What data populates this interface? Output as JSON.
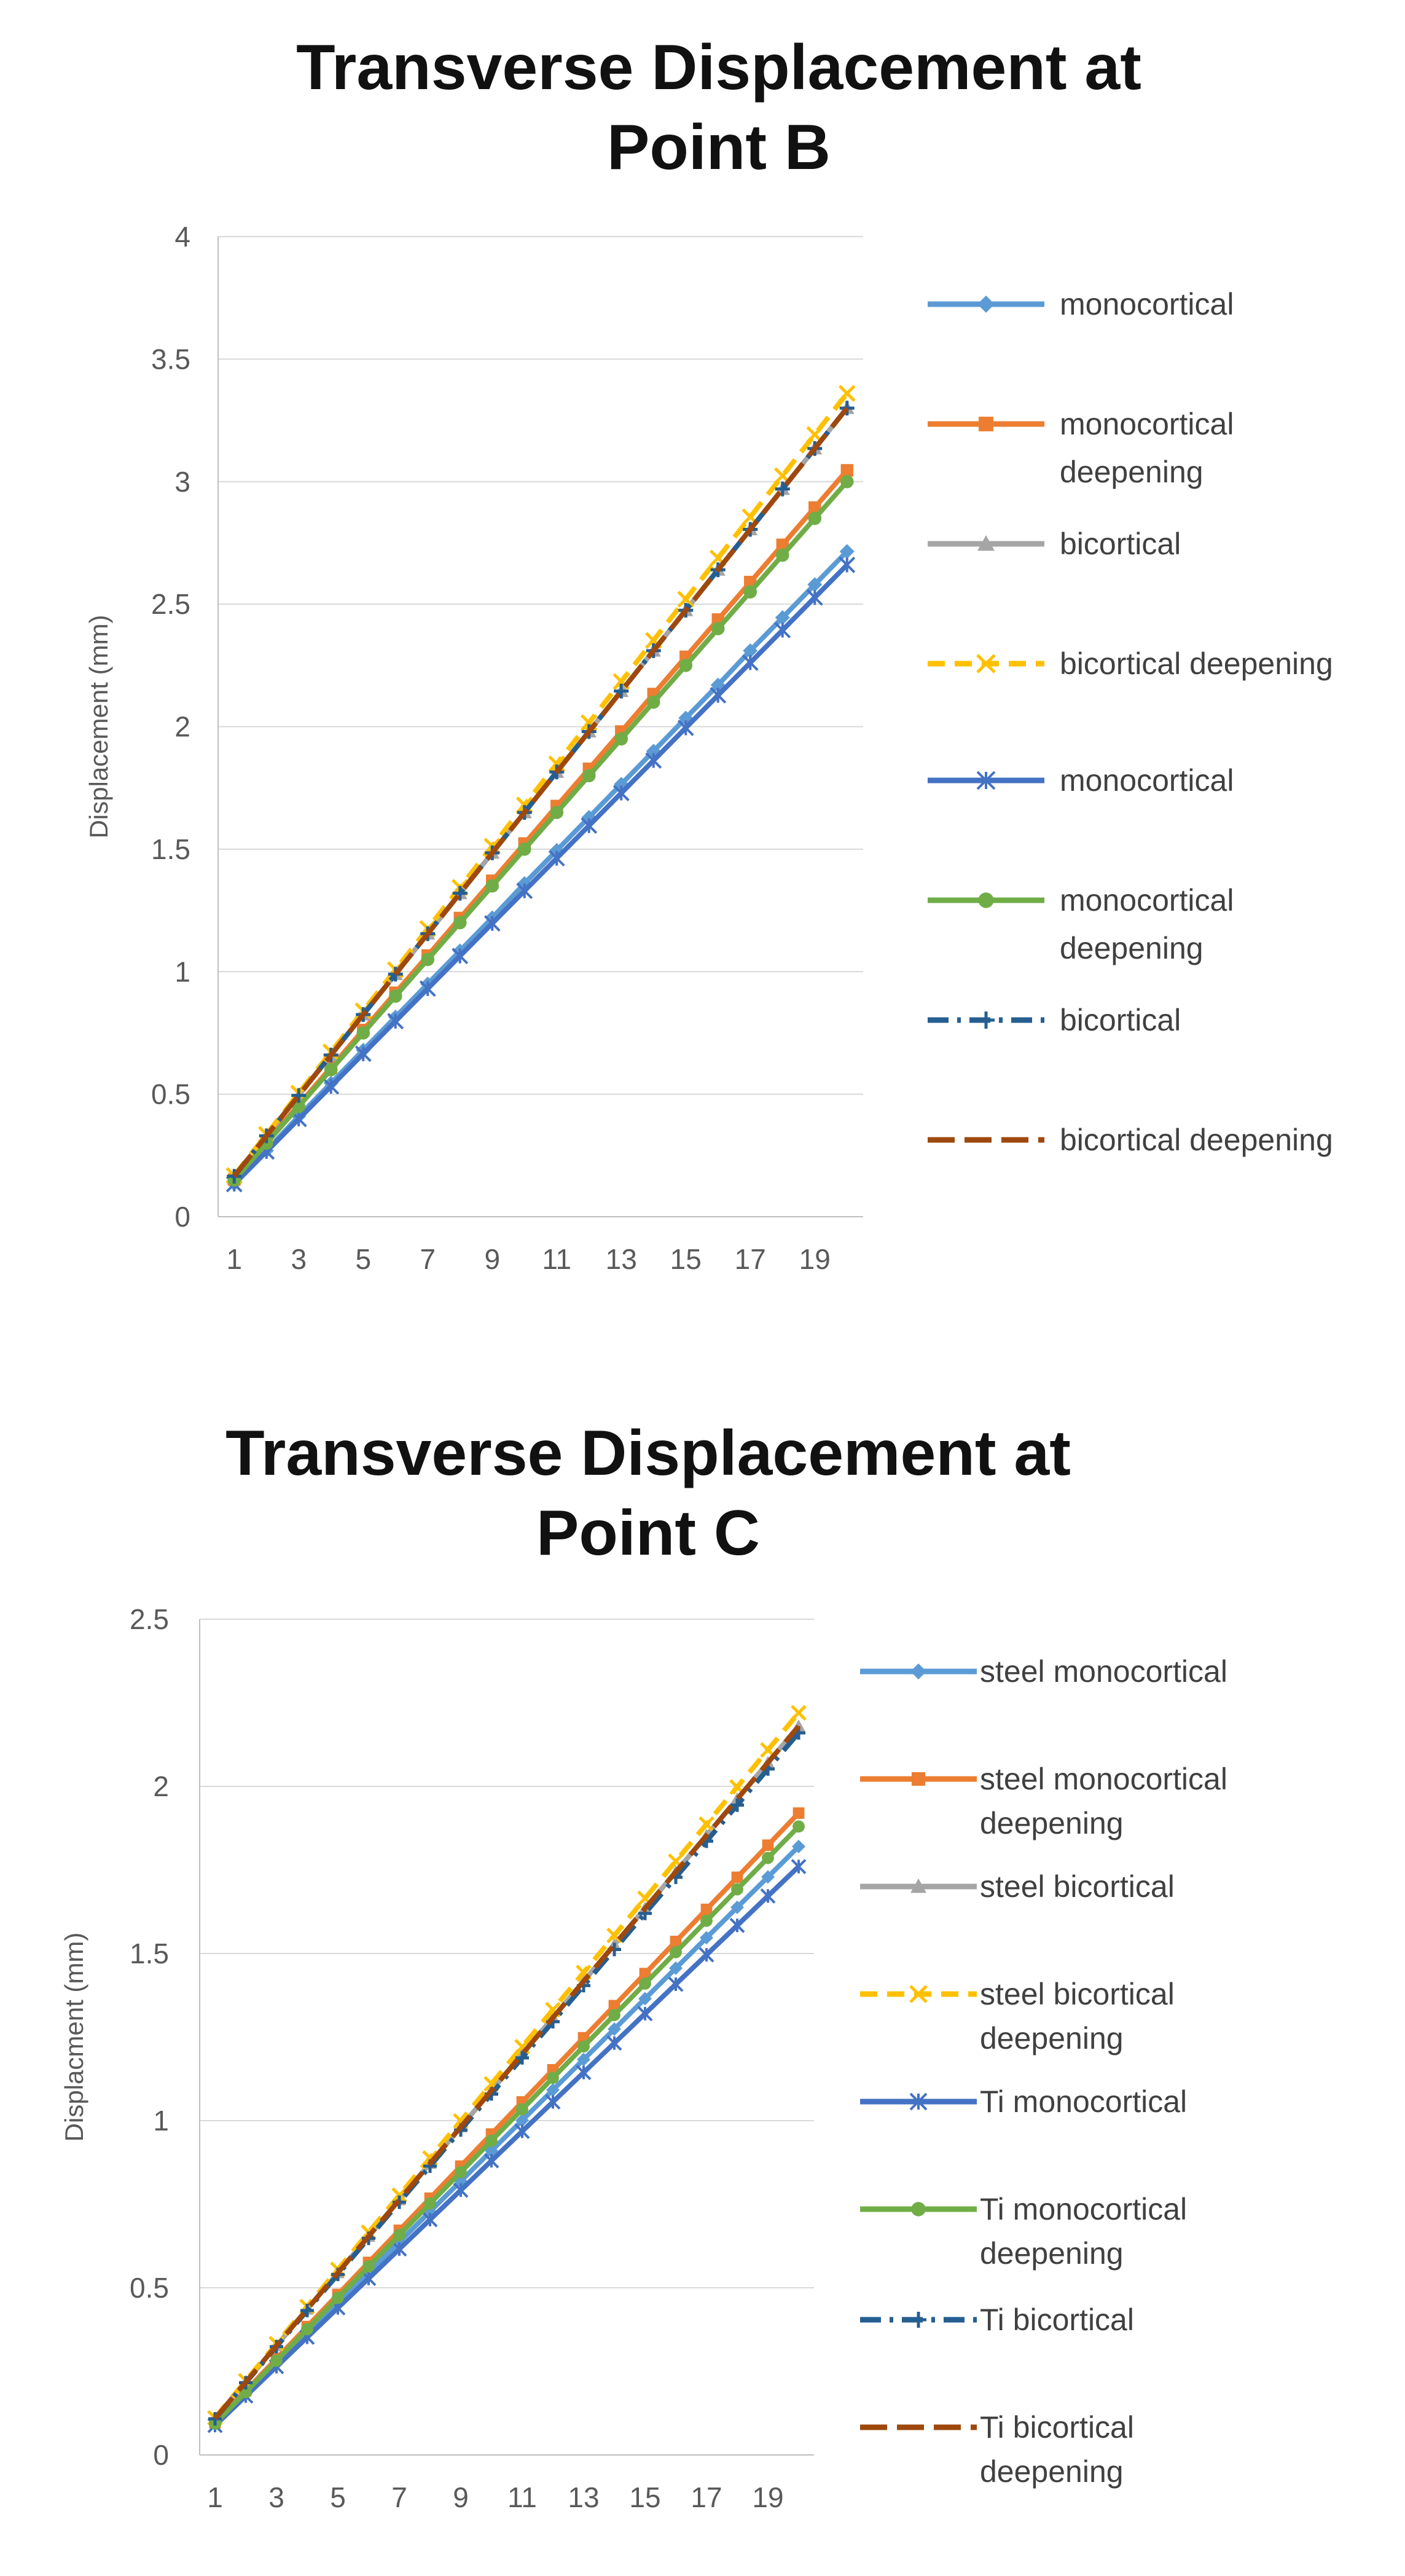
{
  "chart_data": [
    {
      "type": "line",
      "title_lines": [
        "Transverse Displacement at",
        "Point B"
      ],
      "ylabel": "Displacement (mm)",
      "xlabel": "",
      "ylim": [
        0,
        4
      ],
      "yticks": [
        "0",
        "0.5",
        "1",
        "1.5",
        "2",
        "2.5",
        "3",
        "3.5",
        "4"
      ],
      "categories": [
        "1",
        "2",
        "3",
        "4",
        "5",
        "6",
        "7",
        "8",
        "9",
        "10",
        "11",
        "12",
        "13",
        "14",
        "15",
        "16",
        "17",
        "18",
        "19",
        "20"
      ],
      "xtick_labels": [
        "1",
        "3",
        "5",
        "7",
        "9",
        "11",
        "13",
        "15",
        "17",
        "19"
      ],
      "grid": "horizontal",
      "legend_position": "right",
      "series": [
        {
          "name_lines": [
            "monocortical"
          ],
          "color": "#5B9BD5",
          "marker": "diamond",
          "dash": "solid",
          "values": [
            0.135,
            0.27,
            0.41,
            0.545,
            0.68,
            0.815,
            0.95,
            1.085,
            1.22,
            1.36,
            1.495,
            1.63,
            1.765,
            1.9,
            2.035,
            2.17,
            2.31,
            2.445,
            2.58,
            2.715
          ]
        },
        {
          "name_lines": [
            "monocortical",
            "deepening"
          ],
          "color": "#ED7D31",
          "marker": "square",
          "dash": "solid",
          "values": [
            0.152,
            0.305,
            0.457,
            0.609,
            0.762,
            0.914,
            1.066,
            1.219,
            1.371,
            1.523,
            1.676,
            1.828,
            1.98,
            2.133,
            2.285,
            2.437,
            2.59,
            2.742,
            2.894,
            3.046
          ]
        },
        {
          "name_lines": [
            "bicortical"
          ],
          "color": "#A5A5A5",
          "marker": "triangle",
          "dash": "solid",
          "values": [
            0.165,
            0.33,
            0.495,
            0.66,
            0.825,
            0.99,
            1.155,
            1.32,
            1.485,
            1.65,
            1.815,
            1.98,
            2.145,
            2.31,
            2.475,
            2.64,
            2.805,
            2.97,
            3.135,
            3.3
          ]
        },
        {
          "name_lines": [
            "bicortical deepening"
          ],
          "color": "#FFC000",
          "marker": "x",
          "dash": "dashed",
          "values": [
            0.168,
            0.336,
            0.504,
            0.672,
            0.84,
            1.008,
            1.176,
            1.344,
            1.512,
            1.68,
            1.848,
            2.016,
            2.184,
            2.352,
            2.52,
            2.688,
            2.856,
            3.024,
            3.192,
            3.36
          ]
        },
        {
          "name_lines": [
            "monocortical"
          ],
          "color": "#4472C4",
          "marker": "star",
          "dash": "solid",
          "values": [
            0.133,
            0.266,
            0.399,
            0.532,
            0.665,
            0.798,
            0.931,
            1.064,
            1.197,
            1.33,
            1.463,
            1.596,
            1.729,
            1.862,
            1.995,
            2.128,
            2.261,
            2.394,
            2.527,
            2.66
          ]
        },
        {
          "name_lines": [
            "monocortical",
            "deepening"
          ],
          "color": "#70AD47",
          "marker": "circle",
          "dash": "solid",
          "values": [
            0.15,
            0.3,
            0.45,
            0.6,
            0.75,
            0.9,
            1.05,
            1.2,
            1.35,
            1.5,
            1.65,
            1.8,
            1.95,
            2.1,
            2.25,
            2.4,
            2.55,
            2.7,
            2.85,
            3.0
          ]
        },
        {
          "name_lines": [
            "bicortical"
          ],
          "color": "#255E91",
          "marker": "plus",
          "dash": "dashdot",
          "values": [
            0.165,
            0.33,
            0.495,
            0.66,
            0.825,
            0.99,
            1.155,
            1.32,
            1.485,
            1.65,
            1.815,
            1.98,
            2.145,
            2.31,
            2.475,
            2.64,
            2.805,
            2.97,
            3.135,
            3.3
          ]
        },
        {
          "name_lines": [
            "bicortical deepening"
          ],
          "color": "#9E480E",
          "marker": "none",
          "dash": "longdash",
          "values": [
            0.165,
            0.33,
            0.495,
            0.66,
            0.825,
            0.99,
            1.155,
            1.32,
            1.485,
            1.65,
            1.815,
            1.98,
            2.145,
            2.31,
            2.475,
            2.64,
            2.805,
            2.97,
            3.135,
            3.3
          ]
        }
      ]
    },
    {
      "type": "line",
      "title_lines": [
        "Transverse Displacement at",
        "Point C"
      ],
      "ylabel": "Displacment (mm)",
      "xlabel": "",
      "ylim": [
        0,
        2.5
      ],
      "yticks": [
        "0",
        "0.5",
        "1",
        "1.5",
        "2",
        "2.5"
      ],
      "categories": [
        "1",
        "2",
        "3",
        "4",
        "5",
        "6",
        "7",
        "8",
        "9",
        "10",
        "11",
        "12",
        "13",
        "14",
        "15",
        "16",
        "17",
        "18",
        "19",
        "20"
      ],
      "xtick_labels": [
        "1",
        "3",
        "5",
        "7",
        "9",
        "11",
        "13",
        "15",
        "17",
        "19"
      ],
      "grid": "horizontal",
      "legend_position": "right",
      "series": [
        {
          "name_lines": [
            "steel monocortical"
          ],
          "color": "#5B9BD5",
          "marker": "diamond",
          "dash": "solid",
          "values": [
            0.091,
            0.182,
            0.273,
            0.364,
            0.455,
            0.546,
            0.637,
            0.728,
            0.819,
            0.91,
            1.001,
            1.092,
            1.183,
            1.274,
            1.365,
            1.456,
            1.547,
            1.638,
            1.729,
            1.82
          ]
        },
        {
          "name_lines": [
            "steel monocortical",
            "deepening"
          ],
          "color": "#ED7D31",
          "marker": "square",
          "dash": "solid",
          "values": [
            0.096,
            0.192,
            0.288,
            0.384,
            0.48,
            0.576,
            0.672,
            0.768,
            0.864,
            0.96,
            1.056,
            1.152,
            1.248,
            1.344,
            1.44,
            1.536,
            1.632,
            1.728,
            1.824,
            1.92
          ]
        },
        {
          "name_lines": [
            "steel bicortical"
          ],
          "color": "#A5A5A5",
          "marker": "triangle",
          "dash": "solid",
          "values": [
            0.109,
            0.218,
            0.327,
            0.436,
            0.545,
            0.654,
            0.763,
            0.872,
            0.981,
            1.09,
            1.199,
            1.308,
            1.417,
            1.526,
            1.635,
            1.744,
            1.853,
            1.962,
            2.071,
            2.18
          ]
        },
        {
          "name_lines": [
            "steel bicortical",
            "deepening"
          ],
          "color": "#FFC000",
          "marker": "x",
          "dash": "dashed",
          "values": [
            0.111,
            0.222,
            0.333,
            0.444,
            0.555,
            0.666,
            0.777,
            0.888,
            0.999,
            1.11,
            1.221,
            1.332,
            1.443,
            1.554,
            1.665,
            1.776,
            1.887,
            1.998,
            2.109,
            2.22
          ]
        },
        {
          "name_lines": [
            "Ti monocortical"
          ],
          "color": "#4472C4",
          "marker": "star",
          "dash": "solid",
          "values": [
            0.088,
            0.176,
            0.264,
            0.352,
            0.44,
            0.528,
            0.616,
            0.704,
            0.792,
            0.88,
            0.968,
            1.056,
            1.144,
            1.232,
            1.32,
            1.408,
            1.496,
            1.584,
            1.672,
            1.76
          ]
        },
        {
          "name_lines": [
            "Ti monocortical",
            "deepening"
          ],
          "color": "#70AD47",
          "marker": "circle",
          "dash": "solid",
          "values": [
            0.094,
            0.188,
            0.282,
            0.376,
            0.47,
            0.564,
            0.658,
            0.752,
            0.846,
            0.94,
            1.034,
            1.128,
            1.222,
            1.316,
            1.41,
            1.504,
            1.598,
            1.692,
            1.786,
            1.88
          ]
        },
        {
          "name_lines": [
            "Ti bicortical"
          ],
          "color": "#255E91",
          "marker": "plus",
          "dash": "dashdot",
          "values": [
            0.108,
            0.216,
            0.324,
            0.432,
            0.54,
            0.648,
            0.756,
            0.864,
            0.972,
            1.08,
            1.188,
            1.296,
            1.404,
            1.512,
            1.62,
            1.728,
            1.836,
            1.944,
            2.052,
            2.16
          ]
        },
        {
          "name_lines": [
            "Ti bicortical",
            "deepening"
          ],
          "color": "#9E480E",
          "marker": "none",
          "dash": "longdash",
          "values": [
            0.109,
            0.218,
            0.327,
            0.436,
            0.545,
            0.654,
            0.763,
            0.872,
            0.981,
            1.09,
            1.199,
            1.308,
            1.417,
            1.526,
            1.635,
            1.744,
            1.853,
            1.962,
            2.071,
            2.18
          ]
        }
      ]
    }
  ]
}
